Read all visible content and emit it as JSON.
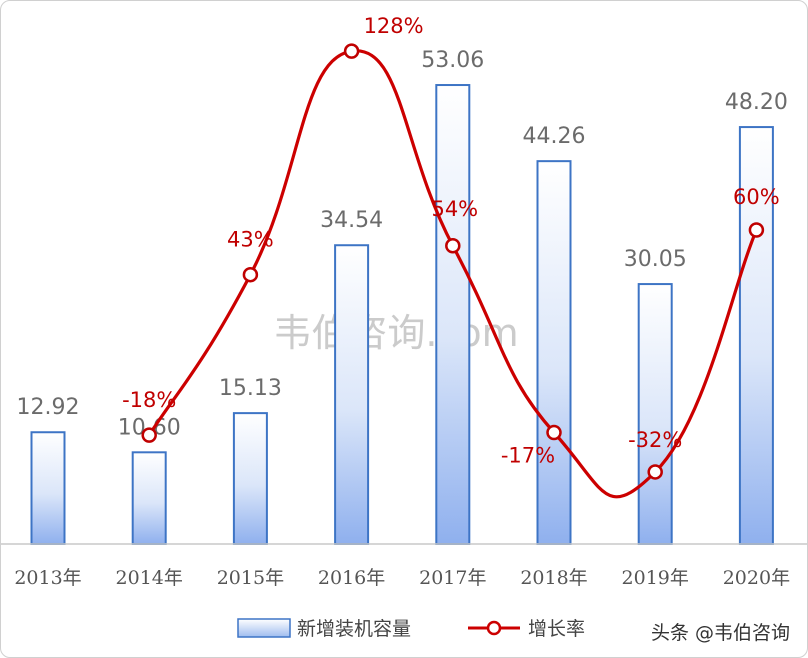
{
  "chart_data": {
    "type": "bar",
    "categories": [
      "2013年",
      "2014年",
      "2015年",
      "2016年",
      "2017年",
      "2018年",
      "2019年",
      "2020年"
    ],
    "series": [
      {
        "name": "新增装机容量",
        "type": "bar",
        "values": [
          12.92,
          10.6,
          15.13,
          34.54,
          53.06,
          44.26,
          30.05,
          48.2
        ],
        "labels": [
          "12.92",
          "10.60",
          "15.13",
          "34.54",
          "53.06",
          "44.26",
          "30.05",
          "48.20"
        ],
        "color": "#3d74c5"
      },
      {
        "name": "增长率",
        "type": "line",
        "values": [
          null,
          -18,
          43,
          128,
          54,
          -17,
          -32,
          60
        ],
        "labels": [
          "",
          "-18%",
          "43%",
          "128%",
          "54%",
          "-17%",
          "-32%",
          "60%"
        ],
        "color": "#c00000"
      }
    ],
    "title": "",
    "xlabel": "",
    "ylabel": "",
    "ylim": [
      0,
      55
    ],
    "y2lim": [
      -55,
      140
    ],
    "grid": false,
    "legend": "bottom-center"
  },
  "watermark": "韦伯咨询.com",
  "credit": "头条 @韦伯咨询"
}
